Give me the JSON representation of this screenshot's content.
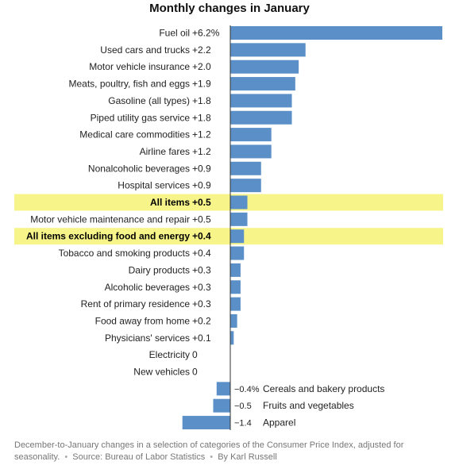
{
  "colors": {
    "bar": "#5b8fc7",
    "highlight": "#f7f48a",
    "axis": "#333333"
  },
  "chart_data": {
    "type": "bar",
    "orientation": "horizontal",
    "title": "Monthly changes in January",
    "categories": [
      "Fuel oil",
      "Used cars and trucks",
      "Motor vehicle insurance",
      "Meats, poultry, fish and eggs",
      "Gasoline (all types)",
      "Piped utility gas service",
      "Medical care commodities",
      "Airline fares",
      "Nonalcoholic beverages",
      "Hospital services",
      "All items",
      "Motor vehicle maintenance and repair",
      "All items excluding food and energy",
      "Tobacco and smoking products",
      "Dairy products",
      "Alcoholic beverages",
      "Rent of primary residence",
      "Food away from home",
      "Physicians' services",
      "Electricity",
      "New vehicles",
      "Cereals and bakery products",
      "Fruits and vegetables",
      "Apparel"
    ],
    "values": [
      6.2,
      2.2,
      2.0,
      1.9,
      1.8,
      1.8,
      1.2,
      1.2,
      0.9,
      0.9,
      0.5,
      0.5,
      0.4,
      0.4,
      0.3,
      0.3,
      0.3,
      0.2,
      0.1,
      0,
      0,
      -0.4,
      -0.5,
      -1.4
    ],
    "value_labels": [
      "+6.2%",
      "+2.2",
      "+2.0",
      "+1.9",
      "+1.8",
      "+1.8",
      "+1.2",
      "+1.2",
      "+0.9",
      "+0.9",
      "+0.5",
      "+0.5",
      "+0.4",
      "+0.4",
      "+0.3",
      "+0.3",
      "+0.3",
      "+0.2",
      "+0.1",
      "0",
      "0",
      "−0.4%",
      "−0.5",
      "−1.4"
    ],
    "highlighted": [
      "All items",
      "All items excluding food and energy"
    ],
    "xlim": [
      -1.4,
      6.2
    ],
    "grid": false,
    "legend": "none"
  },
  "footnote": {
    "description": "December-to-January changes in a selection of categories of the Consumer Price Index, adjusted for seasonality.",
    "source": "Source: Bureau of Labor Statistics",
    "credit": "By Karl Russell",
    "separator": "•"
  }
}
